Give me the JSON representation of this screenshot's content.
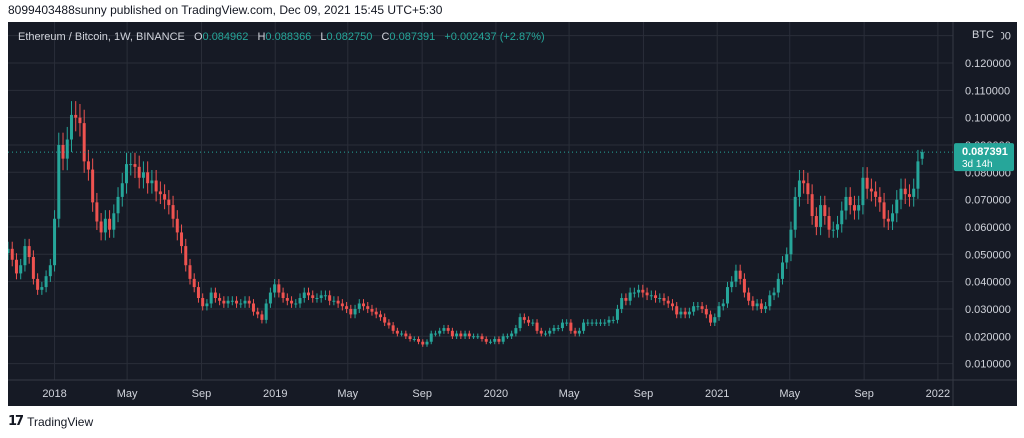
{
  "header": {
    "published": "8099403488sunny published on TradingView.com, Dec 09, 2021 15:45 UTC+5:30"
  },
  "legend": {
    "symbol": "Ethereum / Bitcoin, 1W, BINANCE",
    "o_label": "O",
    "o": "0.084962",
    "h_label": "H",
    "h": "0.088366",
    "l_label": "L",
    "l": "0.082750",
    "c_label": "C",
    "c": "0.087391",
    "change": "+0.002437 (+2.87%)"
  },
  "price_tag": {
    "price": "0.087391",
    "countdown": "3d 14h"
  },
  "footer": {
    "brand": "TradingView"
  },
  "colors": {
    "up": "#26a69a",
    "down": "#ef5350",
    "background": "#161a25",
    "grid": "#2a2e39",
    "text": "#d1d4dc"
  },
  "chart_data": {
    "type": "candlestick",
    "title": "Ethereum / Bitcoin, 1W, BINANCE",
    "ylabel": "BTC",
    "yticks": [
      "0.010000",
      "0.020000",
      "0.030000",
      "0.040000",
      "0.050000",
      "0.060000",
      "0.070000",
      "0.080000",
      "0.090000",
      "0.100000",
      "0.110000",
      "0.120000",
      "0.130000"
    ],
    "ylim": [
      0.004,
      0.135
    ],
    "xticks": [
      "2018",
      "May",
      "Sep",
      "2019",
      "May",
      "Sep",
      "2020",
      "May",
      "Sep",
      "2021",
      "May",
      "Sep",
      "2022"
    ],
    "xtick_dates": [
      "2018-01-01",
      "2018-05-01",
      "2018-09-01",
      "2019-01-01",
      "2019-05-01",
      "2019-09-01",
      "2020-01-01",
      "2020-05-01",
      "2020-09-01",
      "2021-01-01",
      "2021-05-01",
      "2021-09-01",
      "2022-01-01"
    ],
    "xlim": [
      "2017-10-16",
      "2022-01-26"
    ],
    "series_closes": [
      [
        "2017-10-16",
        0.052
      ],
      [
        "2017-10-23",
        0.048
      ],
      [
        "2017-10-30",
        0.043
      ],
      [
        "2017-11-06",
        0.046
      ],
      [
        "2017-11-13",
        0.053
      ],
      [
        "2017-11-20",
        0.049
      ],
      [
        "2017-11-27",
        0.041
      ],
      [
        "2017-12-04",
        0.037
      ],
      [
        "2017-12-11",
        0.038
      ],
      [
        "2017-12-18",
        0.042
      ],
      [
        "2017-12-25",
        0.046
      ],
      [
        "2018-01-01",
        0.063
      ],
      [
        "2018-01-08",
        0.09
      ],
      [
        "2018-01-15",
        0.085
      ],
      [
        "2018-01-22",
        0.092
      ],
      [
        "2018-01-29",
        0.101
      ],
      [
        "2018-02-05",
        0.1
      ],
      [
        "2018-02-12",
        0.098
      ],
      [
        "2018-02-19",
        0.084
      ],
      [
        "2018-02-26",
        0.081
      ],
      [
        "2018-03-05",
        0.069
      ],
      [
        "2018-03-12",
        0.062
      ],
      [
        "2018-03-19",
        0.058
      ],
      [
        "2018-03-26",
        0.063
      ],
      [
        "2018-04-02",
        0.059
      ],
      [
        "2018-04-09",
        0.065
      ],
      [
        "2018-04-16",
        0.071
      ],
      [
        "2018-04-23",
        0.076
      ],
      [
        "2018-04-30",
        0.083
      ],
      [
        "2018-05-07",
        0.083
      ],
      [
        "2018-05-14",
        0.082
      ],
      [
        "2018-05-21",
        0.078
      ],
      [
        "2018-05-28",
        0.08
      ],
      [
        "2018-06-04",
        0.076
      ],
      [
        "2018-06-11",
        0.077
      ],
      [
        "2018-06-18",
        0.073
      ],
      [
        "2018-06-25",
        0.072
      ],
      [
        "2018-07-02",
        0.07
      ],
      [
        "2018-07-09",
        0.068
      ],
      [
        "2018-07-16",
        0.063
      ],
      [
        "2018-07-23",
        0.058
      ],
      [
        "2018-07-30",
        0.053
      ],
      [
        "2018-08-06",
        0.046
      ],
      [
        "2018-08-13",
        0.041
      ],
      [
        "2018-08-20",
        0.038
      ],
      [
        "2018-08-27",
        0.034
      ],
      [
        "2018-09-03",
        0.031
      ],
      [
        "2018-09-10",
        0.032
      ],
      [
        "2018-09-17",
        0.036
      ],
      [
        "2018-09-24",
        0.034
      ],
      [
        "2018-10-01",
        0.033
      ],
      [
        "2018-10-08",
        0.032
      ],
      [
        "2018-10-15",
        0.033
      ],
      [
        "2018-10-22",
        0.033
      ],
      [
        "2018-10-29",
        0.032
      ],
      [
        "2018-11-05",
        0.032
      ],
      [
        "2018-11-12",
        0.033
      ],
      [
        "2018-11-19",
        0.032
      ],
      [
        "2018-11-26",
        0.029
      ],
      [
        "2018-12-03",
        0.028
      ],
      [
        "2018-12-10",
        0.026
      ],
      [
        "2018-12-17",
        0.032
      ],
      [
        "2018-12-24",
        0.036
      ],
      [
        "2018-12-31",
        0.039
      ],
      [
        "2019-01-07",
        0.036
      ],
      [
        "2019-01-14",
        0.034
      ],
      [
        "2019-01-21",
        0.033
      ],
      [
        "2019-01-28",
        0.032
      ],
      [
        "2019-02-04",
        0.032
      ],
      [
        "2019-02-11",
        0.034
      ],
      [
        "2019-02-18",
        0.036
      ],
      [
        "2019-02-25",
        0.035
      ],
      [
        "2019-03-04",
        0.034
      ],
      [
        "2019-03-11",
        0.034
      ],
      [
        "2019-03-18",
        0.035
      ],
      [
        "2019-03-25",
        0.035
      ],
      [
        "2019-04-01",
        0.033
      ],
      [
        "2019-04-08",
        0.033
      ],
      [
        "2019-04-15",
        0.032
      ],
      [
        "2019-04-22",
        0.031
      ],
      [
        "2019-04-29",
        0.03
      ],
      [
        "2019-05-06",
        0.028
      ],
      [
        "2019-05-13",
        0.03
      ],
      [
        "2019-05-20",
        0.032
      ],
      [
        "2019-05-27",
        0.031
      ],
      [
        "2019-06-03",
        0.03
      ],
      [
        "2019-06-10",
        0.029
      ],
      [
        "2019-06-17",
        0.028
      ],
      [
        "2019-06-24",
        0.027
      ],
      [
        "2019-07-01",
        0.025
      ],
      [
        "2019-07-08",
        0.024
      ],
      [
        "2019-07-15",
        0.022
      ],
      [
        "2019-07-22",
        0.021
      ],
      [
        "2019-07-29",
        0.021
      ],
      [
        "2019-08-05",
        0.02
      ],
      [
        "2019-08-12",
        0.019
      ],
      [
        "2019-08-19",
        0.019
      ],
      [
        "2019-08-26",
        0.018
      ],
      [
        "2019-09-02",
        0.017
      ],
      [
        "2019-09-09",
        0.018
      ],
      [
        "2019-09-16",
        0.021
      ],
      [
        "2019-09-23",
        0.021
      ],
      [
        "2019-09-30",
        0.022
      ],
      [
        "2019-10-07",
        0.023
      ],
      [
        "2019-10-14",
        0.022
      ],
      [
        "2019-10-21",
        0.02
      ],
      [
        "2019-10-28",
        0.021
      ],
      [
        "2019-11-04",
        0.02
      ],
      [
        "2019-11-11",
        0.021
      ],
      [
        "2019-11-18",
        0.02
      ],
      [
        "2019-11-25",
        0.02
      ],
      [
        "2019-12-02",
        0.02
      ],
      [
        "2019-12-09",
        0.019
      ],
      [
        "2019-12-16",
        0.018
      ],
      [
        "2019-12-23",
        0.018
      ],
      [
        "2019-12-30",
        0.019
      ],
      [
        "2020-01-06",
        0.018
      ],
      [
        "2020-01-13",
        0.02
      ],
      [
        "2020-01-20",
        0.02
      ],
      [
        "2020-01-27",
        0.021
      ],
      [
        "2020-02-03",
        0.023
      ],
      [
        "2020-02-10",
        0.027
      ],
      [
        "2020-02-17",
        0.026
      ],
      [
        "2020-02-24",
        0.025
      ],
      [
        "2020-03-02",
        0.025
      ],
      [
        "2020-03-09",
        0.022
      ],
      [
        "2020-03-16",
        0.021
      ],
      [
        "2020-03-23",
        0.021
      ],
      [
        "2020-03-30",
        0.022
      ],
      [
        "2020-04-06",
        0.023
      ],
      [
        "2020-04-13",
        0.023
      ],
      [
        "2020-04-20",
        0.025
      ],
      [
        "2020-04-27",
        0.025
      ],
      [
        "2020-05-04",
        0.022
      ],
      [
        "2020-05-11",
        0.021
      ],
      [
        "2020-05-18",
        0.022
      ],
      [
        "2020-05-25",
        0.025
      ],
      [
        "2020-06-01",
        0.025
      ],
      [
        "2020-06-08",
        0.025
      ],
      [
        "2020-06-15",
        0.025
      ],
      [
        "2020-06-22",
        0.025
      ],
      [
        "2020-06-29",
        0.025
      ],
      [
        "2020-07-06",
        0.026
      ],
      [
        "2020-07-13",
        0.026
      ],
      [
        "2020-07-20",
        0.03
      ],
      [
        "2020-07-27",
        0.034
      ],
      [
        "2020-08-03",
        0.033
      ],
      [
        "2020-08-10",
        0.036
      ],
      [
        "2020-08-17",
        0.036
      ],
      [
        "2020-08-24",
        0.037
      ],
      [
        "2020-08-31",
        0.036
      ],
      [
        "2020-09-07",
        0.035
      ],
      [
        "2020-09-14",
        0.035
      ],
      [
        "2020-09-21",
        0.034
      ],
      [
        "2020-09-28",
        0.034
      ],
      [
        "2020-10-05",
        0.033
      ],
      [
        "2020-10-12",
        0.032
      ],
      [
        "2020-10-19",
        0.031
      ],
      [
        "2020-10-26",
        0.028
      ],
      [
        "2020-11-02",
        0.029
      ],
      [
        "2020-11-09",
        0.028
      ],
      [
        "2020-11-16",
        0.029
      ],
      [
        "2020-11-23",
        0.031
      ],
      [
        "2020-11-30",
        0.031
      ],
      [
        "2020-12-07",
        0.03
      ],
      [
        "2020-12-14",
        0.028
      ],
      [
        "2020-12-21",
        0.025
      ],
      [
        "2020-12-28",
        0.027
      ],
      [
        "2021-01-04",
        0.031
      ],
      [
        "2021-01-11",
        0.032
      ],
      [
        "2021-01-18",
        0.038
      ],
      [
        "2021-01-25",
        0.04
      ],
      [
        "2021-02-01",
        0.044
      ],
      [
        "2021-02-08",
        0.041
      ],
      [
        "2021-02-15",
        0.036
      ],
      [
        "2021-02-22",
        0.033
      ],
      [
        "2021-03-01",
        0.031
      ],
      [
        "2021-03-08",
        0.032
      ],
      [
        "2021-03-15",
        0.03
      ],
      [
        "2021-03-22",
        0.031
      ],
      [
        "2021-03-29",
        0.035
      ],
      [
        "2021-04-05",
        0.036
      ],
      [
        "2021-04-12",
        0.041
      ],
      [
        "2021-04-19",
        0.047
      ],
      [
        "2021-04-26",
        0.05
      ],
      [
        "2021-05-03",
        0.059
      ],
      [
        "2021-05-10",
        0.071
      ],
      [
        "2021-05-17",
        0.077
      ],
      [
        "2021-05-24",
        0.076
      ],
      [
        "2021-05-31",
        0.072
      ],
      [
        "2021-06-07",
        0.064
      ],
      [
        "2021-06-14",
        0.06
      ],
      [
        "2021-06-21",
        0.068
      ],
      [
        "2021-06-28",
        0.064
      ],
      [
        "2021-07-05",
        0.059
      ],
      [
        "2021-07-12",
        0.059
      ],
      [
        "2021-07-19",
        0.061
      ],
      [
        "2021-07-26",
        0.066
      ],
      [
        "2021-08-02",
        0.071
      ],
      [
        "2021-08-09",
        0.068
      ],
      [
        "2021-08-16",
        0.066
      ],
      [
        "2021-08-23",
        0.068
      ],
      [
        "2021-08-30",
        0.078
      ],
      [
        "2021-09-06",
        0.074
      ],
      [
        "2021-09-13",
        0.073
      ],
      [
        "2021-09-20",
        0.071
      ],
      [
        "2021-09-27",
        0.069
      ],
      [
        "2021-10-04",
        0.063
      ],
      [
        "2021-10-11",
        0.062
      ],
      [
        "2021-10-18",
        0.065
      ],
      [
        "2021-10-25",
        0.07
      ],
      [
        "2021-11-01",
        0.074
      ],
      [
        "2021-11-08",
        0.072
      ],
      [
        "2021-11-15",
        0.071
      ],
      [
        "2021-11-22",
        0.074
      ],
      [
        "2021-11-29",
        0.084
      ],
      [
        "2021-12-06",
        0.087391
      ]
    ],
    "last_candle": {
      "date": "2021-12-06",
      "open": 0.084962,
      "high": 0.088366,
      "low": 0.08275,
      "close": 0.087391
    }
  }
}
